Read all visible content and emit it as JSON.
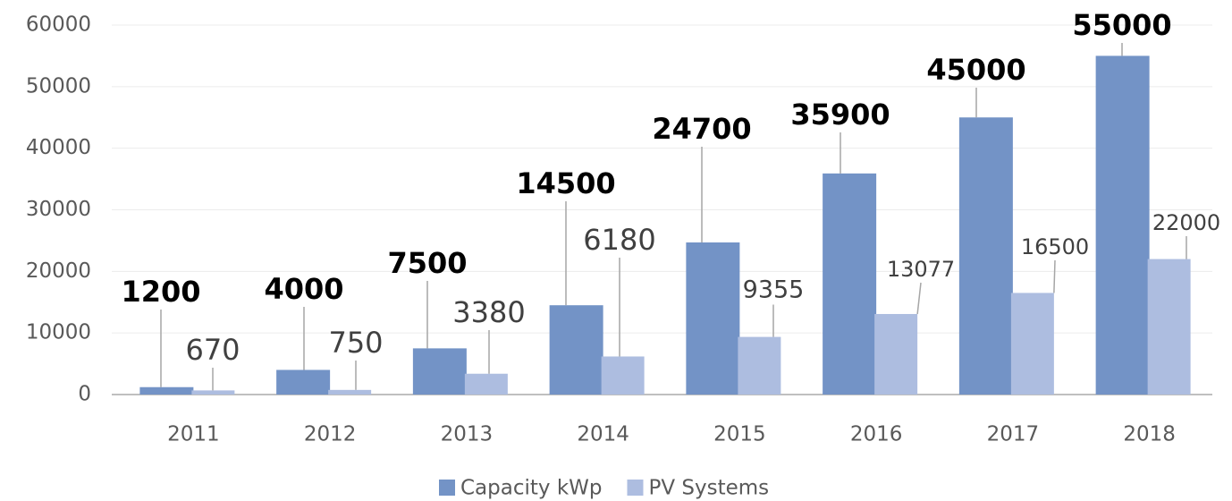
{
  "chart_data": {
    "type": "bar",
    "categories": [
      "2011",
      "2012",
      "2013",
      "2014",
      "2015",
      "2016",
      "2017",
      "2018"
    ],
    "series": [
      {
        "name": "Capacity kWp",
        "color": "#7393c6",
        "values": [
          1200,
          4000,
          7500,
          14500,
          24700,
          35900,
          45000,
          55000
        ]
      },
      {
        "name": "PV Systems",
        "color": "#adbde0",
        "values": [
          670,
          750,
          3380,
          6180,
          9355,
          13077,
          16500,
          22000
        ]
      }
    ],
    "ylim": [
      0,
      60000
    ],
    "yticks": [
      0,
      10000,
      20000,
      30000,
      40000,
      50000,
      60000
    ],
    "grid": true,
    "legend": "bottom"
  }
}
